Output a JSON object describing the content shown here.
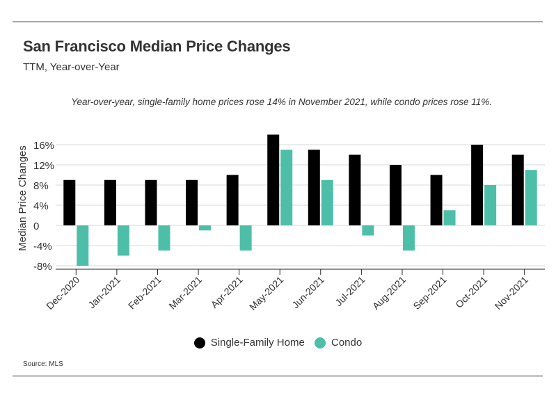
{
  "title": "San Francisco Median Price Changes",
  "subtitle": "TTM, Year-over-Year",
  "annotation": "Year-over-year, single-family home prices rose 14% in November 2021, while condo prices rose 11%.",
  "source": "Source:  MLS",
  "colors": {
    "sfh": "#000000",
    "condo": "#4dbfa8",
    "grid": "#d9d9d9",
    "axis": "#222222"
  },
  "chart_data": {
    "type": "bar",
    "ylabel": "Median Price Changes",
    "ylim": [
      -8,
      16
    ],
    "yticks": [
      16,
      12,
      8,
      4,
      0,
      -4,
      -8
    ],
    "ytick_labels": [
      "16%",
      "12%",
      "8%",
      "4%",
      "0",
      "-4%",
      "-8%"
    ],
    "grid": true,
    "legend_position": "bottom-center",
    "categories": [
      "Dec-2020",
      "Jan-2021",
      "Feb-2021",
      "Mar-2021",
      "Apr-2021",
      "May-2021",
      "Jun-2021",
      "Jul-2021",
      "Aug-2021",
      "Sep-2021",
      "Oct-2021",
      "Nov-2021"
    ],
    "series": [
      {
        "name": "Single-Family Home",
        "color": "#000000",
        "values": [
          9,
          9,
          9,
          9,
          10,
          18,
          15,
          14,
          12,
          10,
          16,
          14
        ]
      },
      {
        "name": "Condo",
        "color": "#4dbfa8",
        "values": [
          -8,
          -6,
          -5,
          -1,
          -5,
          15,
          9,
          -2,
          -5,
          3,
          8,
          11
        ]
      }
    ]
  }
}
